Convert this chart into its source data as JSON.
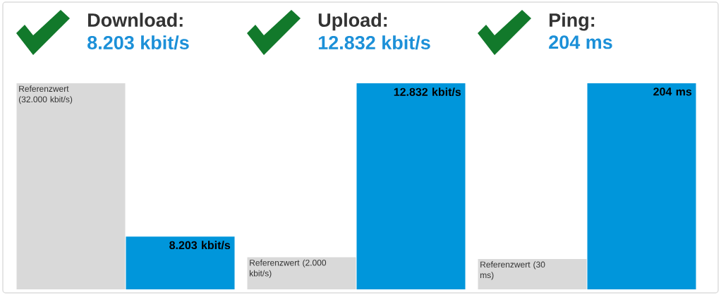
{
  "chart_data": [
    {
      "type": "bar",
      "title": "Download:",
      "subtitle": "8.203 kbit/s",
      "categories": [
        null,
        null
      ],
      "values": [
        32000,
        8203
      ],
      "colors": [
        "#d9d9d9",
        "#0096db"
      ],
      "value_labels": [
        "Referenzwert (32.000 kbit/s)",
        "8.203 kbit/s"
      ]
    },
    {
      "type": "bar",
      "title": "Upload:",
      "subtitle": "12.832 kbit/s",
      "categories": [
        null,
        null
      ],
      "values": [
        2000,
        12832
      ],
      "colors": [
        "#d9d9d9",
        "#0096db"
      ],
      "value_labels": [
        "Referenzwert (2.000 kbit/s)",
        "12.832 kbit/s"
      ]
    },
    {
      "type": "bar",
      "title": "Ping:",
      "subtitle": "204 ms",
      "categories": [
        null,
        null
      ],
      "values": [
        30,
        204
      ],
      "colors": [
        "#d9d9d9",
        "#0096db"
      ],
      "value_labels": [
        "Referenzwert (30 ms)",
        "204 ms"
      ]
    }
  ]
}
